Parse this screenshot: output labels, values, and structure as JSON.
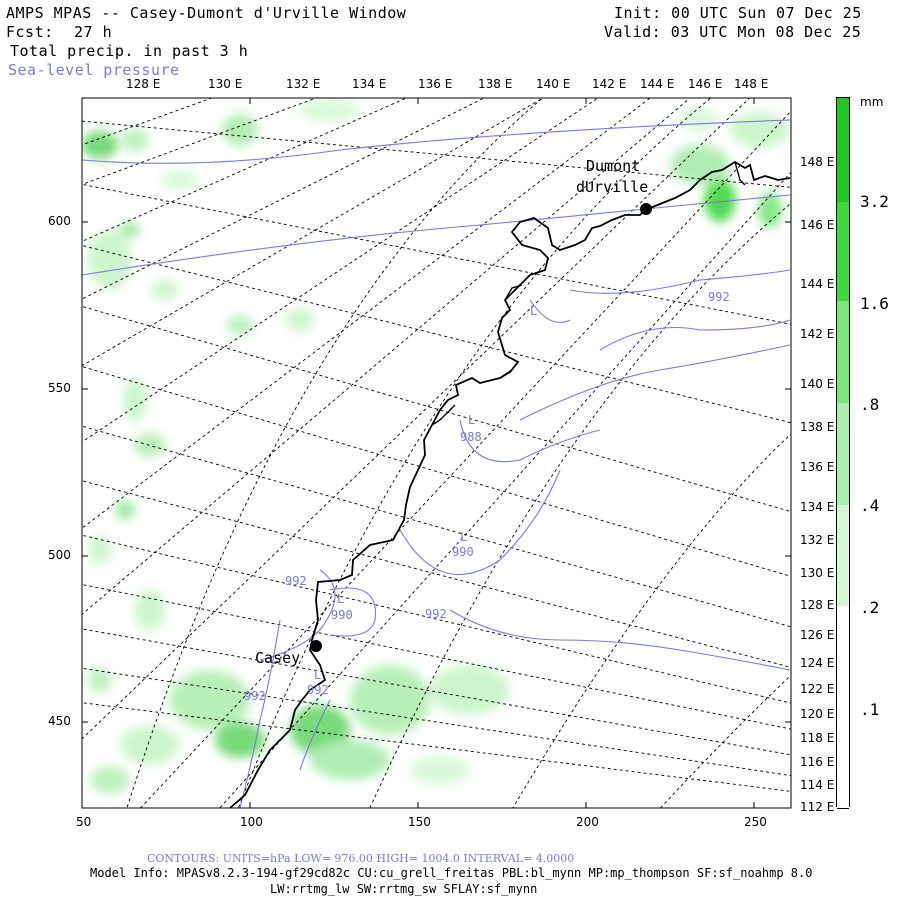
{
  "header": {
    "title": "AMPS MPAS -- Casey-Dumont d'Urville Window",
    "fcst_label": "Fcst:",
    "fcst_value": "27 h",
    "init": "Init: 00 UTC Sun 07 Dec 25",
    "valid": "Valid: 03 UTC Mon 08 Dec 25",
    "field": "Total precip. in past 3 h",
    "overlay": "Sea-level pressure"
  },
  "map": {
    "top_lon_labels": [
      "128 E",
      "130 E",
      "132 E",
      "134 E",
      "136 E",
      "138 E",
      "140 E",
      "142 E",
      "144 E",
      "146 E",
      "148 E"
    ],
    "right_lon_labels": [
      "148 E",
      "146 E",
      "144 E",
      "142 E",
      "140 E",
      "138 E",
      "136 E",
      "134 E",
      "132 E",
      "130 E",
      "128 E",
      "126 E",
      "124 E",
      "122 E",
      "120 E",
      "118 E",
      "116 E",
      "114 E",
      "112 E"
    ],
    "y_labels": [
      "600",
      "550",
      "500",
      "450"
    ],
    "x_labels": [
      "50",
      "100",
      "150",
      "200",
      "250"
    ],
    "stations": {
      "dumont_line1": "Dumont",
      "dumont_line2": "dUrville",
      "casey": "Casey"
    },
    "lows": [
      {
        "letter": "L",
        "value": ""
      },
      {
        "letter": "L",
        "value": "988"
      },
      {
        "letter": "L",
        "value": "990"
      },
      {
        "letter": "L",
        "value": "990"
      },
      {
        "letter": "L",
        "value": "992"
      }
    ],
    "contour_labels": [
      "992",
      "992",
      "992",
      "992"
    ]
  },
  "colorbar": {
    "unit": "mm",
    "labels": [
      "3.2",
      "1.6",
      ".8",
      ".4",
      ".2",
      ".1"
    ],
    "colors": [
      "#1ec81e",
      "#3cd83c",
      "#78e678",
      "#a8f0a8",
      "#d2f7d2",
      "#ffffff"
    ]
  },
  "footer": {
    "contours": "CONTOURS:  UNITS=hPa  LOW=  976.00      HIGH=  1004.0      INTERVAL=   4.0000",
    "model_info": "Model Info: MPASv8.2.3-194-gf29cd82c CU:cu_grell_freitas PBL:bl_mynn MP:mp_thompson SF:sf_noahmp 8.0",
    "model_info2": "LW:rrtmg_lw SW:rrtmg_sw SFLAY:sf_mynn"
  }
}
